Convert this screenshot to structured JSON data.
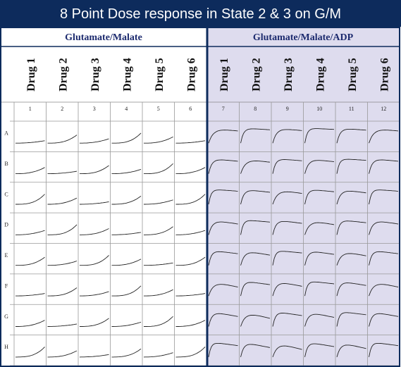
{
  "title": "8 Point Dose response in State 2 & 3 on G/M",
  "sections": [
    {
      "label": "Glutamate/Malate",
      "drugs": [
        "Drug 1",
        "Drug 2",
        "Drug 3",
        "Drug 4",
        "Drug 5",
        "Drug 6"
      ]
    },
    {
      "label": "Glutamate/Malate/ADP",
      "drugs": [
        "Drug 1",
        "Drug 2",
        "Drug 3",
        "Drug 4",
        "Drug 5",
        "Drug 6"
      ]
    }
  ],
  "columns": [
    "1",
    "2",
    "3",
    "4",
    "5",
    "6",
    "7",
    "8",
    "9",
    "10",
    "11",
    "12"
  ],
  "rows": [
    "A",
    "B",
    "C",
    "D",
    "E",
    "F",
    "G",
    "H"
  ]
}
